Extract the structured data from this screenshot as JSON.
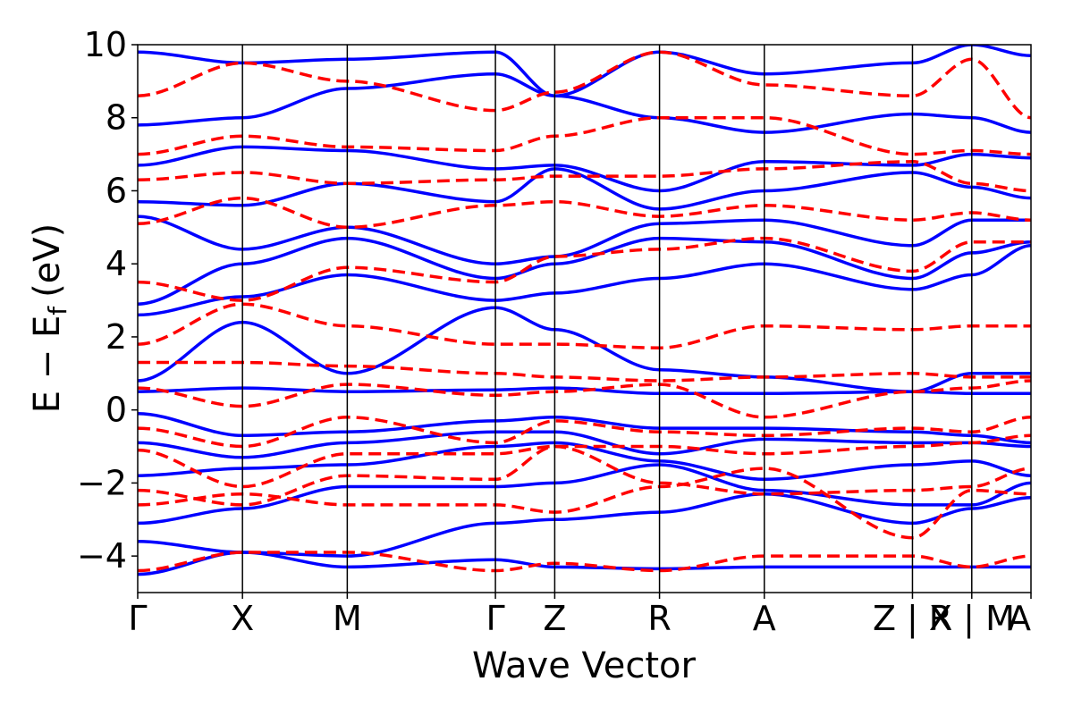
{
  "chart_data": {
    "type": "line",
    "title": "",
    "xlabel": "Wave Vector",
    "ylabel": "E − E",
    "ylabel_subscript": "f",
    "ylabel_unit": "(eV)",
    "ylim": [
      -5,
      10
    ],
    "yticks": [
      -4,
      -2,
      0,
      2,
      4,
      6,
      8,
      10
    ],
    "ytick_labels": [
      "−4",
      "−2",
      "0",
      "2",
      "4",
      "6",
      "8",
      "10"
    ],
    "xlim": [
      0,
      8.525
    ],
    "path_points": [
      {
        "x": 0.0,
        "label": "Γ"
      },
      {
        "x": 1.0,
        "label": "X"
      },
      {
        "x": 2.0,
        "label": "M"
      },
      {
        "x": 3.414,
        "label": "Γ"
      },
      {
        "x": 3.98,
        "label": "Z"
      },
      {
        "x": 4.98,
        "label": "R"
      },
      {
        "x": 5.98,
        "label": "A"
      },
      {
        "x": 7.394,
        "label": "Z | X"
      },
      {
        "x": 7.96,
        "label": "R | M"
      },
      {
        "x": 8.525,
        "label": "A"
      }
    ],
    "grid": false,
    "legend": "none",
    "series_styles": [
      {
        "color": "#0000ff",
        "dash": "solid"
      },
      {
        "color": "#ff0000",
        "dash": "dashed"
      }
    ],
    "series": [
      {
        "style": 0,
        "x": [
          0,
          1,
          2,
          3.414,
          3.98,
          4.98,
          5.98,
          7.394,
          7.96,
          8.525
        ],
        "values": [
          -4.5,
          -3.9,
          -4.3,
          -4.1,
          -4.3,
          -4.35,
          -4.3,
          -4.3,
          -4.3,
          -4.3
        ]
      },
      {
        "style": 0,
        "x": [
          0,
          1,
          2,
          3.414,
          3.98,
          4.98,
          5.98,
          7.394,
          7.96,
          8.525
        ],
        "values": [
          -3.6,
          -3.9,
          -4.0,
          -3.1,
          -3.0,
          -2.8,
          -2.3,
          -3.1,
          -2.7,
          -2.4
        ]
      },
      {
        "style": 0,
        "x": [
          0,
          1,
          2,
          3.414,
          3.98,
          4.98,
          5.98,
          7.394,
          7.96,
          8.525
        ],
        "values": [
          -3.1,
          -2.7,
          -2.1,
          -2.1,
          -2.0,
          -1.5,
          -2.2,
          -2.6,
          -2.6,
          -2.0
        ]
      },
      {
        "style": 0,
        "x": [
          0,
          1,
          2,
          3.414,
          3.98,
          4.98,
          5.98,
          7.394,
          7.96,
          8.525
        ],
        "values": [
          -1.8,
          -1.6,
          -1.5,
          -1.0,
          -0.9,
          -1.4,
          -1.9,
          -1.5,
          -1.4,
          -1.8
        ]
      },
      {
        "style": 0,
        "x": [
          0,
          1,
          2,
          3.414,
          3.98,
          4.98,
          5.98,
          7.394,
          7.96,
          8.525
        ],
        "values": [
          -0.9,
          -1.3,
          -0.9,
          -0.6,
          -0.6,
          -1.2,
          -0.8,
          -0.9,
          -0.9,
          -1.0
        ]
      },
      {
        "style": 0,
        "x": [
          0,
          1,
          2,
          3.414,
          3.98,
          4.98,
          5.98,
          7.394,
          7.96,
          8.525
        ],
        "values": [
          -0.1,
          -0.7,
          -0.6,
          -0.3,
          -0.2,
          -0.5,
          -0.5,
          -0.6,
          -0.7,
          -0.9
        ]
      },
      {
        "style": 0,
        "x": [
          0,
          1,
          2,
          3.414,
          3.98,
          4.98,
          5.98,
          7.394,
          7.96,
          8.525
        ],
        "values": [
          0.5,
          0.6,
          0.5,
          0.55,
          0.6,
          0.45,
          0.45,
          0.5,
          0.45,
          0.45
        ]
      },
      {
        "style": 0,
        "x": [
          0,
          1,
          2,
          3.414,
          3.98,
          4.98,
          5.98,
          7.394,
          7.96,
          8.525
        ],
        "values": [
          0.8,
          2.4,
          1.0,
          2.8,
          2.2,
          1.1,
          0.9,
          0.5,
          1.0,
          1.0
        ]
      },
      {
        "style": 0,
        "x": [
          0,
          1,
          2,
          3.414,
          3.98,
          4.98,
          5.98,
          7.394,
          7.96,
          8.525
        ],
        "values": [
          2.6,
          3.1,
          3.7,
          3.0,
          3.2,
          3.6,
          4.0,
          3.3,
          3.7,
          4.5
        ]
      },
      {
        "style": 0,
        "x": [
          0,
          1,
          2,
          3.414,
          3.98,
          4.98,
          5.98,
          7.394,
          7.96,
          8.525
        ],
        "values": [
          2.9,
          4.0,
          4.7,
          3.6,
          4.0,
          4.7,
          4.6,
          3.6,
          4.3,
          4.6
        ]
      },
      {
        "style": 0,
        "x": [
          0,
          1,
          2,
          3.414,
          3.98,
          4.98,
          5.98,
          7.394,
          7.96,
          8.525
        ],
        "values": [
          5.3,
          4.4,
          5.0,
          4.0,
          4.2,
          5.1,
          5.2,
          4.5,
          5.2,
          5.2
        ]
      },
      {
        "style": 0,
        "x": [
          0,
          1,
          2,
          3.414,
          3.98,
          4.98,
          5.98,
          7.394,
          7.96,
          8.525
        ],
        "values": [
          5.7,
          5.6,
          6.2,
          5.7,
          6.6,
          5.5,
          6.0,
          6.5,
          6.1,
          5.8
        ]
      },
      {
        "style": 0,
        "x": [
          0,
          1,
          2,
          3.414,
          3.98,
          4.98,
          5.98,
          7.394,
          7.96,
          8.525
        ],
        "values": [
          6.7,
          7.2,
          7.1,
          6.6,
          6.7,
          6.0,
          6.8,
          6.7,
          7.0,
          6.9
        ]
      },
      {
        "style": 0,
        "x": [
          0,
          1,
          2,
          3.414,
          3.98,
          4.98,
          5.98,
          7.394,
          7.96,
          8.525
        ],
        "values": [
          7.8,
          8.0,
          8.8,
          9.2,
          8.6,
          8.0,
          7.6,
          8.1,
          8.0,
          7.6
        ]
      },
      {
        "style": 0,
        "x": [
          0,
          1,
          2,
          3.414,
          3.98,
          4.98,
          5.98,
          7.394,
          7.96,
          8.525
        ],
        "values": [
          9.8,
          9.5,
          9.6,
          9.8,
          8.6,
          9.8,
          9.2,
          9.5,
          10.0,
          9.7
        ]
      },
      {
        "style": 1,
        "x": [
          0,
          1,
          2,
          3.414,
          3.98,
          4.98,
          5.98,
          7.394,
          7.96,
          8.525
        ],
        "values": [
          -4.4,
          -3.9,
          -3.9,
          -4.4,
          -4.2,
          -4.4,
          -4.0,
          -4.0,
          -4.3,
          -4.0
        ]
      },
      {
        "style": 1,
        "x": [
          0,
          1,
          2,
          3.414,
          3.98,
          4.98,
          5.98,
          7.394,
          7.96,
          8.525
        ],
        "values": [
          -2.6,
          -2.3,
          -2.6,
          -2.6,
          -2.8,
          -2.1,
          -1.6,
          -3.5,
          -2.2,
          -2.3
        ]
      },
      {
        "style": 1,
        "x": [
          0,
          1,
          2,
          3.414,
          3.98,
          4.98,
          5.98,
          7.394,
          7.96,
          8.525
        ],
        "values": [
          -2.2,
          -2.6,
          -1.8,
          -1.9,
          -1.0,
          -2.0,
          -2.3,
          -2.2,
          -2.1,
          -1.6
        ]
      },
      {
        "style": 1,
        "x": [
          0,
          1,
          2,
          3.414,
          3.98,
          4.98,
          5.98,
          7.394,
          7.96,
          8.525
        ],
        "values": [
          -1.1,
          -2.1,
          -1.2,
          -1.2,
          -1.0,
          -1.0,
          -1.2,
          -1.0,
          -0.9,
          -0.7
        ]
      },
      {
        "style": 1,
        "x": [
          0,
          1,
          2,
          3.414,
          3.98,
          4.98,
          5.98,
          7.394,
          7.96,
          8.525
        ],
        "values": [
          -0.5,
          -1.0,
          -0.2,
          -0.9,
          -0.3,
          -0.6,
          -0.7,
          -0.5,
          -0.6,
          -0.2
        ]
      },
      {
        "style": 1,
        "x": [
          0,
          1,
          2,
          3.414,
          3.98,
          4.98,
          5.98,
          7.394,
          7.96,
          8.525
        ],
        "values": [
          0.6,
          0.1,
          0.7,
          0.4,
          0.5,
          0.7,
          -0.2,
          0.5,
          0.6,
          0.8
        ]
      },
      {
        "style": 1,
        "x": [
          0,
          1,
          2,
          3.414,
          3.98,
          4.98,
          5.98,
          7.394,
          7.96,
          8.525
        ],
        "values": [
          1.3,
          1.3,
          1.2,
          1.0,
          0.9,
          0.8,
          0.9,
          1.0,
          0.9,
          0.9
        ]
      },
      {
        "style": 1,
        "x": [
          0,
          1,
          2,
          3.414,
          3.98,
          4.98,
          5.98,
          7.394,
          7.96,
          8.525
        ],
        "values": [
          1.8,
          2.9,
          2.3,
          1.8,
          1.8,
          1.7,
          2.3,
          2.2,
          2.3,
          2.3
        ]
      },
      {
        "style": 1,
        "x": [
          0,
          1,
          2,
          3.414,
          3.98,
          4.98,
          5.98,
          7.394,
          7.96,
          8.525
        ],
        "values": [
          3.5,
          3.0,
          3.9,
          3.5,
          4.2,
          4.4,
          4.7,
          3.8,
          4.6,
          4.6
        ]
      },
      {
        "style": 1,
        "x": [
          0,
          1,
          2,
          3.414,
          3.98,
          4.98,
          5.98,
          7.394,
          7.96,
          8.525
        ],
        "values": [
          5.1,
          5.8,
          5.0,
          5.6,
          5.7,
          5.3,
          5.6,
          5.2,
          5.4,
          5.2
        ]
      },
      {
        "style": 1,
        "x": [
          0,
          1,
          2,
          3.414,
          3.98,
          4.98,
          5.98,
          7.394,
          7.96,
          8.525
        ],
        "values": [
          6.3,
          6.5,
          6.2,
          6.3,
          6.4,
          6.4,
          6.6,
          6.8,
          6.2,
          6.0
        ]
      },
      {
        "style": 1,
        "x": [
          0,
          1,
          2,
          3.414,
          3.98,
          4.98,
          5.98,
          7.394,
          7.96,
          8.525
        ],
        "values": [
          7.0,
          7.5,
          7.2,
          7.1,
          7.5,
          8.0,
          8.0,
          7.0,
          7.1,
          7.0
        ]
      },
      {
        "style": 1,
        "x": [
          0,
          1,
          2,
          3.414,
          3.98,
          4.98,
          5.98,
          7.394,
          7.96,
          8.525
        ],
        "values": [
          8.6,
          9.5,
          9.0,
          8.2,
          8.7,
          9.8,
          8.9,
          8.6,
          9.6,
          8.0
        ]
      }
    ]
  }
}
